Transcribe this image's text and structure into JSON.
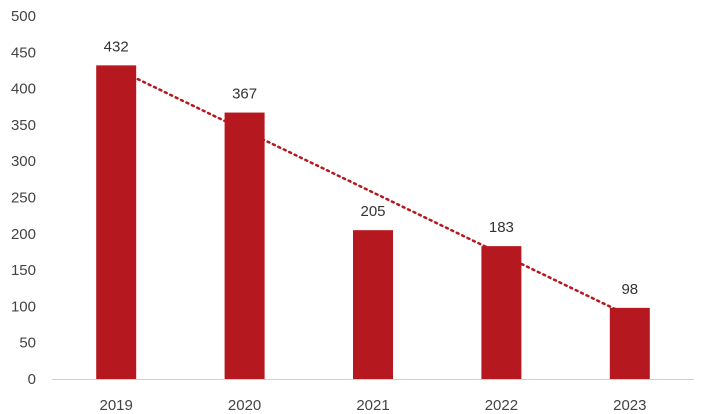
{
  "chart_data": {
    "type": "bar",
    "title": "",
    "xlabel": "",
    "ylabel": "",
    "categories": [
      "2019",
      "2020",
      "2021",
      "2022",
      "2023"
    ],
    "values": [
      432,
      367,
      205,
      183,
      98
    ],
    "data_labels": [
      "432",
      "367",
      "205",
      "183",
      "98"
    ],
    "ylim": [
      0,
      500
    ],
    "yticks": [
      0,
      50,
      100,
      150,
      200,
      250,
      300,
      350,
      400,
      450,
      500
    ],
    "ytick_labels": [
      "0",
      "50",
      "100",
      "150",
      "200",
      "250",
      "300",
      "350",
      "400",
      "450",
      "500"
    ],
    "grid": false,
    "legend": "none",
    "bar_color": "#b5191f",
    "trendline": {
      "type": "linear",
      "style": "dotted",
      "color": "#b5191f"
    }
  }
}
